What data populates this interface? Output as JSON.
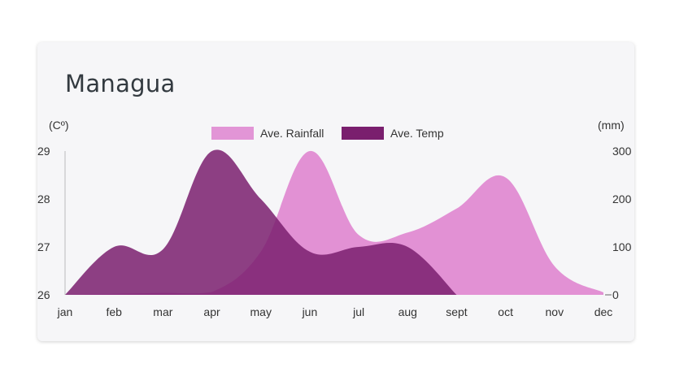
{
  "title": "Managua",
  "colors": {
    "rainfall": "#e08bd2",
    "temp": "#7a1f6e",
    "background": "#f6f6f8"
  },
  "chart_data": {
    "type": "area",
    "title": "Managua",
    "categories": [
      "jan",
      "feb",
      "mar",
      "apr",
      "may",
      "jun",
      "jul",
      "aug",
      "sept",
      "oct",
      "nov",
      "dec"
    ],
    "y_left": {
      "unit_label": "(Cº)",
      "ylim": [
        26,
        29
      ],
      "ticks": [
        "26",
        "27",
        "28",
        "29"
      ]
    },
    "y_right": {
      "unit_label": "(mm)",
      "ylim": [
        0,
        300
      ],
      "ticks": [
        "0",
        "100",
        "200",
        "300"
      ]
    },
    "legend": {
      "placement": "top-center",
      "entries": [
        "Ave. Rainfall",
        "Ave. Temp"
      ]
    },
    "series": [
      {
        "name": "Ave. Rainfall",
        "axis": "right",
        "values": [
          0,
          2,
          4,
          6,
          90,
          300,
          125,
          130,
          180,
          245,
          60,
          5
        ]
      },
      {
        "name": "Ave. Temp",
        "axis": "left",
        "values": [
          26,
          27,
          26.95,
          29,
          28,
          26.9,
          27,
          27,
          26,
          null,
          null,
          null
        ]
      }
    ],
    "grid": false
  }
}
